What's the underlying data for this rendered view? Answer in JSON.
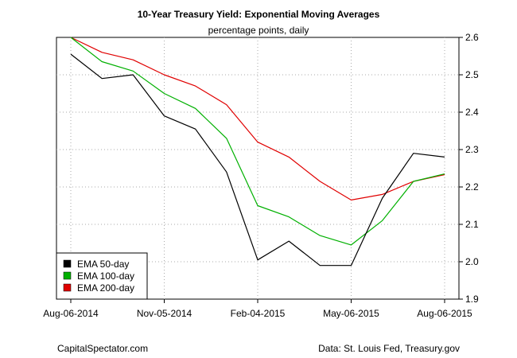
{
  "chart_data": {
    "type": "line",
    "title": "10-Year Treasury Yield: Exponential Moving Averages",
    "subtitle": "percentage points, daily",
    "xlabel": "",
    "ylabel": "",
    "x_ticks": [
      "Aug-06-2014",
      "Nov-05-2014",
      "Feb-04-2015",
      "May-06-2015",
      "Aug-06-2015"
    ],
    "ylim": [
      1.9,
      2.6
    ],
    "y_ticks": [
      "1.9",
      "2.0",
      "2.1",
      "2.2",
      "2.3",
      "2.4",
      "2.5",
      "2.6"
    ],
    "y_axis_side": "right",
    "grid": true,
    "legend_position": "bottom-left",
    "x": [
      "Aug-06-2014",
      "Sep-08-2014",
      "Oct-06-2014",
      "Nov-05-2014",
      "Dec-05-2014",
      "Jan-05-2015",
      "Feb-04-2015",
      "Mar-06-2015",
      "Apr-06-2015",
      "May-06-2015",
      "Jun-05-2015",
      "Jul-06-2015",
      "Aug-06-2015"
    ],
    "series": [
      {
        "name": "EMA 50-day",
        "color": "#000000",
        "values": [
          2.555,
          2.49,
          2.5,
          2.39,
          2.355,
          2.24,
          2.005,
          2.055,
          1.99,
          1.99,
          2.17,
          2.29,
          2.28
        ]
      },
      {
        "name": "EMA 100-day",
        "color": "#00b000",
        "values": [
          2.6,
          2.535,
          2.51,
          2.45,
          2.41,
          2.33,
          2.15,
          2.12,
          2.07,
          2.045,
          2.11,
          2.215,
          2.235
        ]
      },
      {
        "name": "EMA 200-day",
        "color": "#e00000",
        "values": [
          2.6,
          2.56,
          2.54,
          2.5,
          2.47,
          2.42,
          2.32,
          2.28,
          2.215,
          2.165,
          2.18,
          2.215,
          2.233
        ]
      }
    ]
  },
  "footer": {
    "left": "CapitalSpectator.com",
    "right": "Data: St. Louis Fed, Treasury.gov"
  }
}
